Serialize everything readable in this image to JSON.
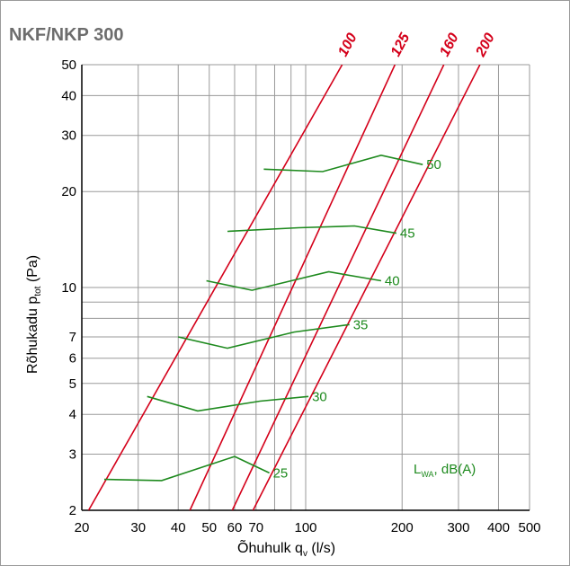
{
  "chart_data": {
    "type": "line",
    "title": "NKF/NKP 300",
    "xlabel": {
      "main": "Õhuhulk q",
      "sub": "v",
      "unit": " (l/s)"
    },
    "ylabel": {
      "main": "Rõhukadu p",
      "sub": "tot",
      "unit": " (Pa)"
    },
    "x_scale": "log",
    "y_scale": "log",
    "xlim": [
      20,
      500
    ],
    "ylim": [
      2,
      50
    ],
    "grid": true,
    "x_ticks": [
      {
        "value": 20,
        "label": "20"
      },
      {
        "value": 30,
        "label": "30"
      },
      {
        "value": 40,
        "label": "40"
      },
      {
        "value": 50,
        "label": "50"
      },
      {
        "value": 60,
        "label": "60"
      },
      {
        "value": 70,
        "label": "70"
      },
      {
        "value": 100,
        "label": "100"
      },
      {
        "value": 200,
        "label": "200"
      },
      {
        "value": 300,
        "label": "300"
      },
      {
        "value": 400,
        "label": "400"
      },
      {
        "value": 500,
        "label": "500"
      }
    ],
    "x_grid": [
      20,
      30,
      40,
      50,
      60,
      70,
      80,
      90,
      100,
      200,
      300,
      400,
      500
    ],
    "y_ticks": [
      {
        "value": 2,
        "label": "2"
      },
      {
        "value": 3,
        "label": "3"
      },
      {
        "value": 4,
        "label": "4"
      },
      {
        "value": 5,
        "label": "5"
      },
      {
        "value": 6,
        "label": "6"
      },
      {
        "value": 7,
        "label": "7"
      },
      {
        "value": 10,
        "label": "10"
      },
      {
        "value": 20,
        "label": "20"
      },
      {
        "value": 30,
        "label": "30"
      },
      {
        "value": 40,
        "label": "40"
      },
      {
        "value": 50,
        "label": "50"
      }
    ],
    "y_grid": [
      2,
      3,
      4,
      5,
      6,
      7,
      8,
      9,
      10,
      20,
      30,
      40,
      50
    ],
    "duct_lines": {
      "color": "#d4001a",
      "series": [
        {
          "name": "100",
          "points": [
            [
              21,
              2
            ],
            [
              130,
              50
            ]
          ]
        },
        {
          "name": "125",
          "points": [
            [
              43.5,
              2
            ],
            [
              190,
              50
            ]
          ]
        },
        {
          "name": "160",
          "points": [
            [
              59,
              2
            ],
            [
              270,
              50
            ]
          ]
        },
        {
          "name": "200",
          "points": [
            [
              68.5,
              2
            ],
            [
              350,
              50
            ]
          ]
        }
      ]
    },
    "sound_lines": {
      "color": "#1e8a1e",
      "legend": {
        "main": "L",
        "sub": "WA",
        "unit": ", dB(A)"
      },
      "series": [
        {
          "name": "25",
          "points": [
            [
              23.5,
              2.5
            ],
            [
              35.5,
              2.48
            ],
            [
              60,
              2.95
            ],
            [
              77,
              2.62
            ]
          ]
        },
        {
          "name": "30",
          "points": [
            [
              32,
              4.55
            ],
            [
              46,
              4.1
            ],
            [
              72,
              4.4
            ],
            [
              102,
              4.55
            ]
          ]
        },
        {
          "name": "35",
          "points": [
            [
              40,
              7.0
            ],
            [
              57,
              6.45
            ],
            [
              92,
              7.25
            ],
            [
              137,
              7.65
            ]
          ]
        },
        {
          "name": "40",
          "points": [
            [
              49,
              10.5
            ],
            [
              68,
              9.8
            ],
            [
              118,
              11.2
            ],
            [
              172,
              10.5
            ]
          ]
        },
        {
          "name": "45",
          "points": [
            [
              57,
              15.0
            ],
            [
              95,
              15.4
            ],
            [
              142,
              15.6
            ],
            [
              192,
              14.8
            ]
          ]
        },
        {
          "name": "50",
          "points": [
            [
              74,
              23.5
            ],
            [
              113,
              23.1
            ],
            [
              172,
              26.0
            ],
            [
              232,
              24.3
            ]
          ]
        }
      ]
    },
    "colors": {
      "grid": "#9a9a9a",
      "axis": "#000000",
      "title": "#6d6d6d"
    }
  }
}
